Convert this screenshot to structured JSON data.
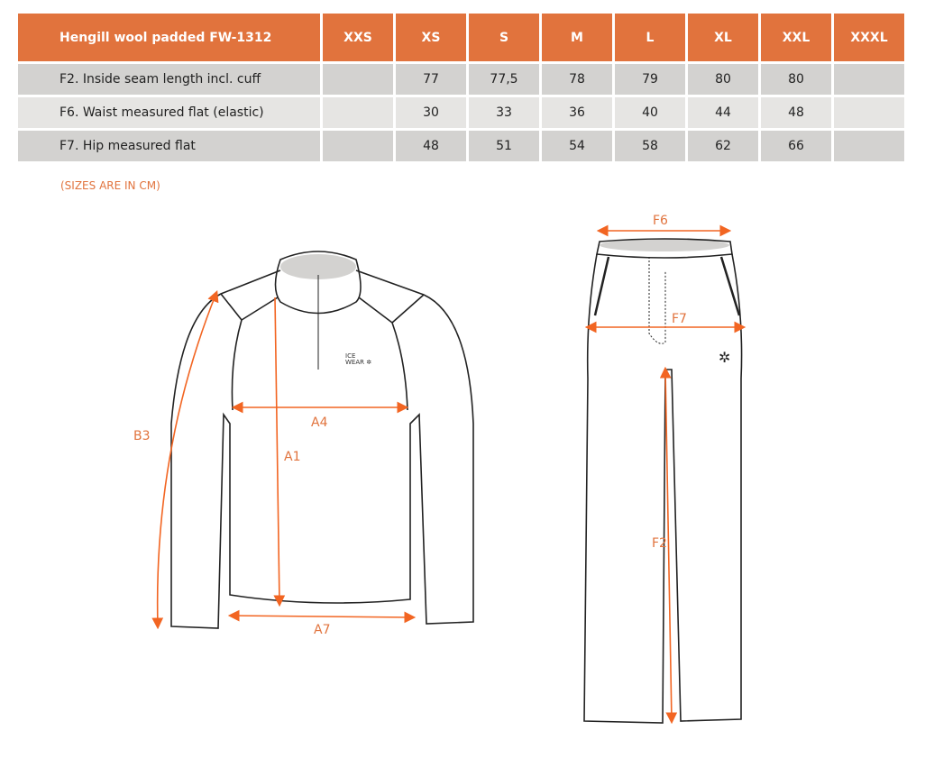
{
  "table": {
    "title": "Hengill wool padded FW-1312",
    "sizes": [
      "XXS",
      "XS",
      "S",
      "M",
      "L",
      "XL",
      "XXL",
      "XXXL"
    ],
    "rows": [
      {
        "label": "F2. Inside seam length incl. cuff",
        "values": [
          "",
          "77",
          "77,5",
          "78",
          "79",
          "80",
          "80",
          ""
        ]
      },
      {
        "label": "F6. Waist measured flat (elastic)",
        "values": [
          "",
          "30",
          "33",
          "36",
          "40",
          "44",
          "48",
          ""
        ]
      },
      {
        "label": "F7. Hip measured flat",
        "values": [
          "",
          "48",
          "51",
          "54",
          "58",
          "62",
          "66",
          ""
        ]
      }
    ]
  },
  "note": "(SIZES ARE IN CM)",
  "diagram": {
    "accent": "#e1733d",
    "top_labels": {
      "b3": "B3",
      "a4": "A4",
      "a1": "A1",
      "a7": "A7"
    },
    "pants_labels": {
      "f6": "F6",
      "f7": "F7",
      "f2": "F2"
    },
    "logo": "ICE WEAR"
  }
}
